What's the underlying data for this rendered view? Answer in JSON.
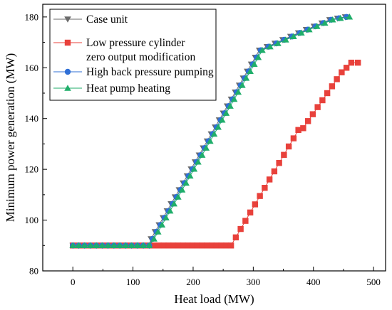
{
  "chart_data": {
    "type": "line",
    "title": "",
    "xlabel": "Heat load (MW)",
    "ylabel": "Minimum power generation (MW)",
    "xlim": [
      -50,
      520
    ],
    "ylim": [
      80,
      185
    ],
    "xticks": [
      0,
      100,
      200,
      300,
      400,
      500
    ],
    "yticks": [
      80,
      100,
      120,
      140,
      160,
      180
    ],
    "grid": false,
    "legend_position": "top-left",
    "series": [
      {
        "name": "Case unit",
        "color": "#6b6b6b",
        "marker": "triangle-down",
        "x": [
          0,
          9.8,
          19.5,
          29.3,
          39.1,
          48.8,
          58.6,
          68.4,
          78.1,
          87.9,
          97.7,
          107.4,
          117.2,
          127,
          130,
          136.7,
          143.3,
          150,
          156.7,
          163.3,
          170,
          176.7,
          183.3,
          190,
          196.7,
          203.3,
          210,
          216.7,
          223.3,
          230,
          236.7,
          243.3,
          250,
          256.7,
          263.3,
          270,
          276.7,
          283.3,
          290,
          296.7,
          303.3,
          310,
          323,
          336,
          349,
          362,
          375,
          388,
          401,
          414,
          427,
          440,
          453
        ],
        "values": [
          90,
          90,
          90,
          90,
          90,
          90,
          90,
          90,
          90,
          90,
          90,
          90,
          90,
          90,
          92.6,
          95.4,
          98.1,
          100.9,
          103.6,
          106.4,
          109.1,
          111.9,
          114.6,
          117.4,
          120.1,
          122.9,
          125.6,
          128.4,
          131.1,
          133.9,
          136.6,
          139.4,
          142.1,
          144.9,
          147.6,
          150.4,
          153.1,
          155.9,
          158.6,
          161.4,
          164.1,
          166.9,
          168.3,
          169.6,
          171,
          172.3,
          173.7,
          175,
          176.3,
          177.6,
          178.9,
          179.5,
          180
        ]
      },
      {
        "name": "Low pressure cylinder zero output modification",
        "legend_lines": [
          "Low pressure cylinder",
          "zero output modification"
        ],
        "color": "#e8413b",
        "marker": "square",
        "x": [
          0,
          9.8,
          19.5,
          29.3,
          39.1,
          48.8,
          58.6,
          68.4,
          78.1,
          87.9,
          97.7,
          107.4,
          117.2,
          127,
          135,
          143,
          151,
          159,
          167,
          175,
          183,
          191,
          199,
          207,
          215,
          223,
          231,
          239,
          247,
          255,
          263,
          271,
          279,
          287,
          295,
          303,
          311,
          319,
          327,
          335,
          343,
          351,
          359,
          367,
          375,
          383,
          391,
          399,
          407,
          415,
          423,
          431,
          439,
          447,
          455,
          463,
          474
        ],
        "values": [
          90,
          90,
          90,
          90,
          90,
          90,
          90,
          90,
          90,
          90,
          90,
          90,
          90,
          90,
          90,
          90,
          90,
          90,
          90,
          90,
          90,
          90,
          90,
          90,
          90,
          90,
          90,
          90,
          90,
          90,
          90,
          93.2,
          96.5,
          99.7,
          103,
          106.2,
          109.5,
          112.7,
          116,
          119.2,
          122.5,
          125.7,
          129,
          132.2,
          135.5,
          136.2,
          139,
          141.7,
          144.5,
          147.2,
          150,
          152.7,
          155.5,
          158.2,
          160,
          162,
          162
        ]
      },
      {
        "name": "High back pressure pumping",
        "color": "#2f6fd6",
        "marker": "circle",
        "x": [
          0,
          9.8,
          19.5,
          29.3,
          39.1,
          48.8,
          58.6,
          68.4,
          78.1,
          87.9,
          97.7,
          107.4,
          117.2,
          127,
          132.5,
          139.2,
          145.8,
          152.5,
          159.2,
          165.8,
          172.5,
          179.2,
          185.8,
          192.5,
          199.2,
          205.8,
          212.5,
          219.2,
          225.8,
          232.5,
          239.2,
          245.8,
          252.5,
          259.2,
          265.8,
          272.5,
          279.2,
          285.8,
          292.5,
          299.2,
          305.8,
          312.5,
          325.5,
          338.5,
          351.5,
          364.5,
          377.5,
          390.5,
          403.5,
          416.5,
          429.5,
          442.5,
          455
        ],
        "values": [
          90,
          90,
          90,
          90,
          90,
          90,
          90,
          90,
          90,
          90,
          90,
          90,
          90,
          90,
          92.6,
          95.4,
          98.1,
          100.9,
          103.6,
          106.4,
          109.1,
          111.9,
          114.6,
          117.4,
          120.1,
          122.9,
          125.6,
          128.4,
          131.1,
          133.9,
          136.6,
          139.4,
          142.1,
          144.9,
          147.6,
          150.4,
          153.1,
          155.9,
          158.6,
          161.4,
          164.1,
          166.9,
          168.3,
          169.6,
          171,
          172.3,
          173.7,
          175,
          176.3,
          177.6,
          178.9,
          179.5,
          180
        ]
      },
      {
        "name": "Heat pump heating",
        "color": "#1fae6a",
        "marker": "triangle-up",
        "x": [
          0,
          9.8,
          19.5,
          29.3,
          39.1,
          48.8,
          58.6,
          68.4,
          78.1,
          87.9,
          97.7,
          107.4,
          117.2,
          127,
          135,
          141.7,
          148.3,
          155,
          161.7,
          168.3,
          175,
          181.7,
          188.3,
          195,
          201.7,
          208.3,
          215,
          221.7,
          228.3,
          235,
          241.7,
          248.3,
          255,
          261.7,
          268.3,
          275,
          281.7,
          288.3,
          295,
          301.7,
          308.3,
          315,
          328,
          341,
          354,
          367,
          380,
          393,
          406,
          419,
          432,
          445,
          460
        ],
        "values": [
          90,
          90,
          90,
          90,
          90,
          90,
          90,
          90,
          90,
          90,
          90,
          90,
          90,
          90,
          92.6,
          95.4,
          98.1,
          100.9,
          103.6,
          106.4,
          109.1,
          111.9,
          114.6,
          117.4,
          120.1,
          122.9,
          125.6,
          128.4,
          131.1,
          133.9,
          136.6,
          139.4,
          142.1,
          144.9,
          147.6,
          150.4,
          153.1,
          155.9,
          158.6,
          161.4,
          164.1,
          166.9,
          168.3,
          169.6,
          171,
          172.3,
          173.7,
          175,
          176.3,
          177.6,
          178.9,
          179.5,
          180
        ]
      }
    ]
  }
}
